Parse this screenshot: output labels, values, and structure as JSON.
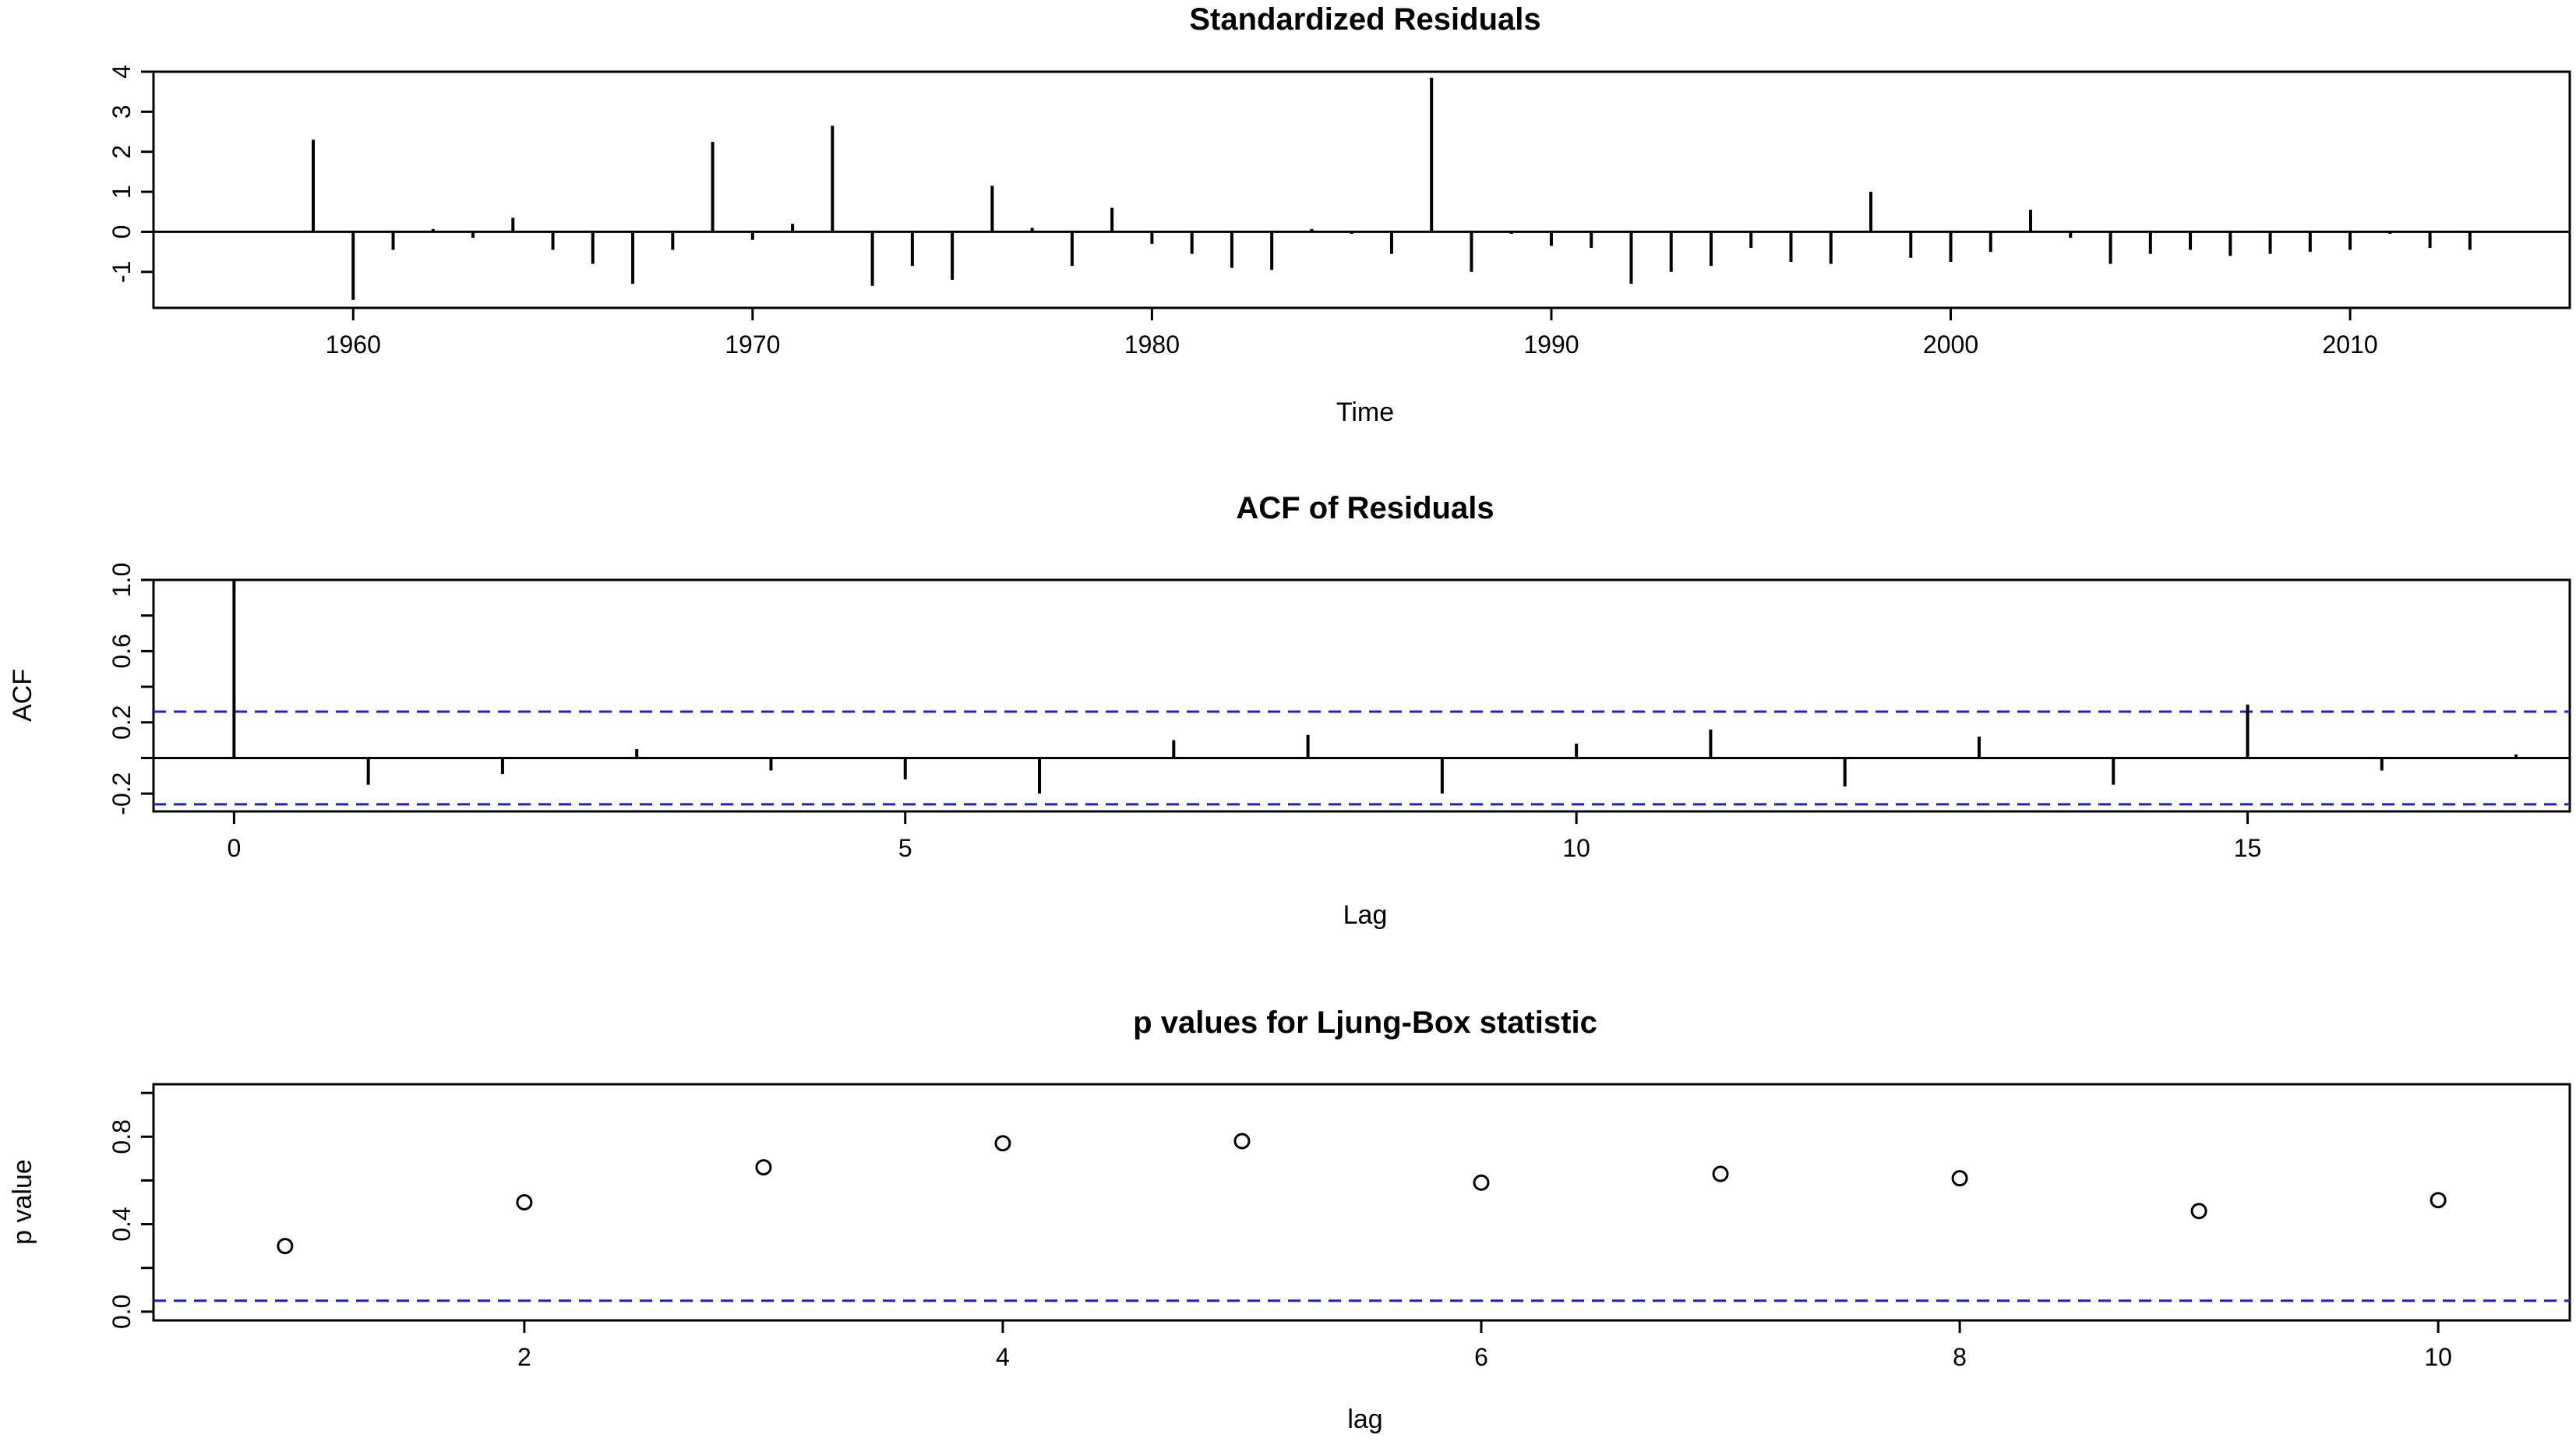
{
  "chart_data": [
    {
      "type": "bar",
      "title": "Standardized Residuals",
      "xlabel": "Time",
      "ylabel": "",
      "xlim": [
        1955,
        2015.5
      ],
      "ylim": [
        -1.9,
        4.0
      ],
      "x_ticks": [
        1960,
        1970,
        1980,
        1990,
        2000,
        2010
      ],
      "y_ticks": [
        -1,
        0,
        1,
        2,
        3,
        4
      ],
      "grid": false,
      "x": [
        1959,
        1960,
        1961,
        1962,
        1963,
        1964,
        1965,
        1966,
        1967,
        1968,
        1969,
        1970,
        1971,
        1972,
        1973,
        1974,
        1975,
        1976,
        1977,
        1978,
        1979,
        1980,
        1981,
        1982,
        1983,
        1984,
        1985,
        1986,
        1987,
        1988,
        1989,
        1990,
        1991,
        1992,
        1993,
        1994,
        1995,
        1996,
        1997,
        1998,
        1999,
        2000,
        2001,
        2002,
        2003,
        2004,
        2005,
        2006,
        2007,
        2008,
        2009,
        2010,
        2011,
        2012,
        2013
      ],
      "values": [
        2.3,
        -1.7,
        -0.45,
        0.07,
        -0.15,
        0.35,
        -0.45,
        -0.8,
        -1.3,
        -0.45,
        2.25,
        -0.2,
        0.2,
        2.65,
        -1.35,
        -0.85,
        -1.2,
        1.15,
        0.1,
        -0.85,
        0.6,
        -0.3,
        -0.55,
        -0.9,
        -0.95,
        0.07,
        -0.05,
        -0.55,
        3.85,
        -1.0,
        -0.05,
        -0.35,
        -0.4,
        -1.3,
        -1.0,
        -0.85,
        -0.4,
        -0.75,
        -0.8,
        1.0,
        -0.65,
        -0.75,
        -0.5,
        0.55,
        -0.15,
        -0.8,
        -0.55,
        -0.45,
        -0.6,
        -0.55,
        -0.5,
        -0.45,
        -0.05,
        -0.4,
        -0.45
      ]
    },
    {
      "type": "bar",
      "title": "ACF of Residuals",
      "xlabel": "Lag",
      "ylabel": "ACF",
      "xlim": [
        -0.6,
        17.4
      ],
      "ylim": [
        -0.3,
        1.0
      ],
      "x_ticks": [
        0,
        5,
        10,
        15
      ],
      "y_ticks": [
        -0.2,
        0.2,
        0.6,
        1.0
      ],
      "y_tick_labels": [
        "-0.2",
        "0.2",
        "0.6",
        "1.0"
      ],
      "minor_y_ticks": [
        0.0,
        0.4,
        0.8
      ],
      "ci": [
        0.26,
        -0.26
      ],
      "grid": false,
      "x": [
        0,
        1,
        2,
        3,
        4,
        5,
        6,
        7,
        8,
        9,
        10,
        11,
        12,
        13,
        14,
        15,
        16,
        17
      ],
      "values": [
        1.0,
        -0.15,
        -0.09,
        0.05,
        -0.07,
        -0.12,
        -0.2,
        0.1,
        0.13,
        -0.2,
        0.08,
        0.16,
        -0.16,
        0.12,
        -0.15,
        0.3,
        -0.07,
        0.02
      ]
    },
    {
      "type": "scatter",
      "title": "p values for Ljung-Box statistic",
      "xlabel": "lag",
      "ylabel": "p value",
      "xlim": [
        0.45,
        10.55
      ],
      "ylim": [
        -0.04,
        1.04
      ],
      "x_ticks": [
        2,
        4,
        6,
        8,
        10
      ],
      "y_ticks": [
        0.0,
        0.4,
        0.8
      ],
      "y_tick_labels": [
        "0.0",
        "0.4",
        "0.8"
      ],
      "minor_y_ticks": [
        0.2,
        0.6,
        1.0
      ],
      "ci": [
        0.05
      ],
      "grid": false,
      "x": [
        1,
        2,
        3,
        4,
        5,
        6,
        7,
        8,
        9,
        10
      ],
      "values": [
        0.3,
        0.5,
        0.66,
        0.77,
        0.78,
        0.59,
        0.63,
        0.61,
        0.46,
        0.51
      ]
    }
  ]
}
